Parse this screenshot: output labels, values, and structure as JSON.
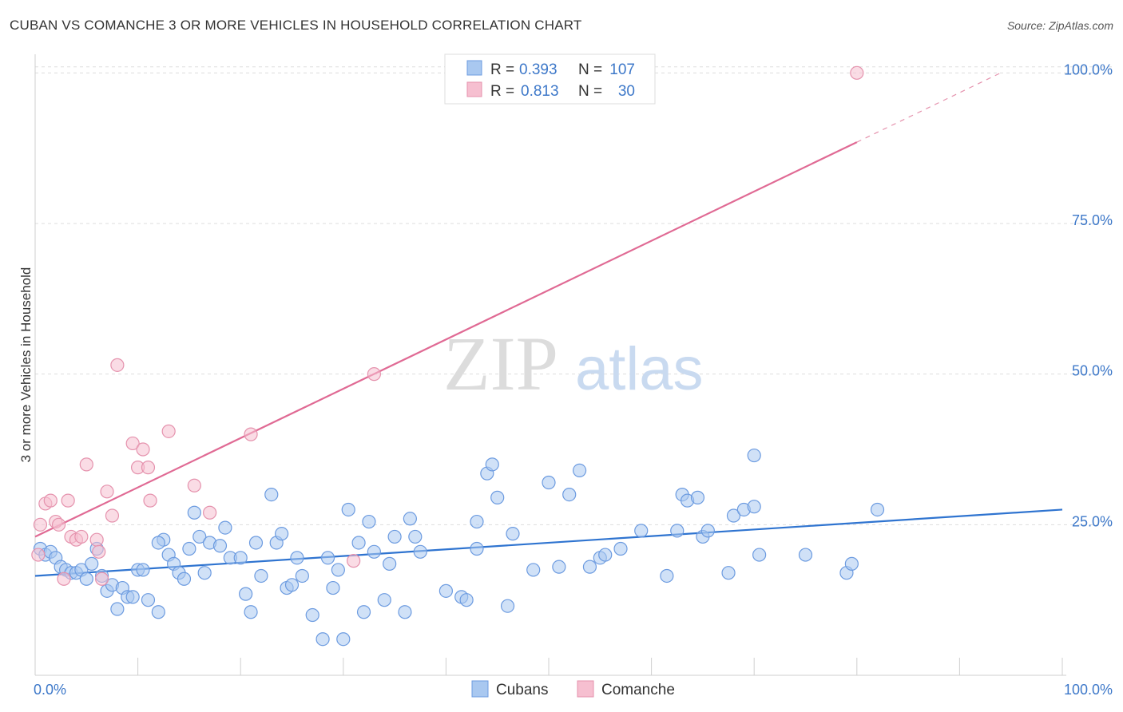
{
  "title": "CUBAN VS COMANCHE 3 OR MORE VEHICLES IN HOUSEHOLD CORRELATION CHART",
  "source": "Source: ZipAtlas.com",
  "watermark": {
    "zip": "ZIP",
    "atlas": "atlas"
  },
  "colors": {
    "cubans_fill": "#a9c8f0",
    "cubans_stroke": "#6c9be0",
    "cubans_line": "#2f74d0",
    "comanche_fill": "#f6bfd0",
    "comanche_stroke": "#e592ad",
    "comanche_line": "#e06a94",
    "axis_label_blue": "#3d78c9",
    "grid": "#dddddd"
  },
  "legend_top": {
    "rows": [
      {
        "r_label": "R =",
        "r_value": "0.393",
        "n_label": "N =",
        "n_value": "107"
      },
      {
        "r_label": "R =",
        "r_value": "0.813",
        "n_label": "N =",
        "n_value": "30"
      }
    ]
  },
  "legend_bottom": [
    "Cubans",
    "Comanche"
  ],
  "chart_data": {
    "type": "scatter",
    "ylabel": "3 or more Vehicles in Household",
    "x_tick_labels": [
      "0.0%",
      "100.0%"
    ],
    "y_tick_labels": [
      "25.0%",
      "50.0%",
      "75.0%",
      "100.0%"
    ],
    "y_ticks": [
      25,
      50,
      75,
      100
    ],
    "xlim": [
      0,
      100
    ],
    "ylim": [
      0,
      102
    ],
    "grid": "horizontal dashed",
    "legend_placement": "top-center",
    "series": [
      {
        "name": "Cubans",
        "trend": {
          "x": [
            0,
            100
          ],
          "y": [
            16.5,
            27.5
          ]
        },
        "points": [
          [
            0.5,
            21
          ],
          [
            1,
            20
          ],
          [
            1.5,
            20.5
          ],
          [
            2,
            19.5
          ],
          [
            2.5,
            18
          ],
          [
            3,
            17.5
          ],
          [
            3.5,
            17
          ],
          [
            4,
            17
          ],
          [
            4.5,
            17.5
          ],
          [
            5,
            16
          ],
          [
            5.5,
            18.5
          ],
          [
            6,
            21
          ],
          [
            6.5,
            16.5
          ],
          [
            7,
            14
          ],
          [
            7.5,
            15
          ],
          [
            8,
            11
          ],
          [
            8.5,
            14.5
          ],
          [
            9,
            13
          ],
          [
            9.5,
            13
          ],
          [
            10,
            17.5
          ],
          [
            10.5,
            17.5
          ],
          [
            11,
            12.5
          ],
          [
            12,
            10.5
          ],
          [
            12.5,
            22.5
          ],
          [
            12,
            22
          ],
          [
            13,
            20
          ],
          [
            13.5,
            18.5
          ],
          [
            14,
            17
          ],
          [
            14.5,
            16
          ],
          [
            15,
            21
          ],
          [
            15.5,
            27
          ],
          [
            16,
            23
          ],
          [
            16.5,
            17
          ],
          [
            17,
            22
          ],
          [
            18,
            21.5
          ],
          [
            18.5,
            24.5
          ],
          [
            19,
            19.5
          ],
          [
            20,
            19.5
          ],
          [
            20.5,
            13.5
          ],
          [
            21,
            10.5
          ],
          [
            21.5,
            22
          ],
          [
            22,
            16.5
          ],
          [
            23,
            30
          ],
          [
            23.5,
            22
          ],
          [
            24,
            23.5
          ],
          [
            24.5,
            14.5
          ],
          [
            25,
            15
          ],
          [
            25.5,
            19.5
          ],
          [
            26,
            16.5
          ],
          [
            27,
            10
          ],
          [
            28,
            6
          ],
          [
            28.5,
            19.5
          ],
          [
            29,
            14.5
          ],
          [
            29.5,
            17.5
          ],
          [
            30,
            6
          ],
          [
            30.5,
            27.5
          ],
          [
            31.5,
            22
          ],
          [
            32,
            10.5
          ],
          [
            32.5,
            25.5
          ],
          [
            33,
            20.5
          ],
          [
            34,
            12.5
          ],
          [
            34.5,
            18.5
          ],
          [
            35,
            23
          ],
          [
            36,
            10.5
          ],
          [
            36.5,
            26
          ],
          [
            37,
            23
          ],
          [
            37.5,
            20.5
          ],
          [
            40,
            14
          ],
          [
            41.5,
            13
          ],
          [
            42,
            12.5
          ],
          [
            43,
            21
          ],
          [
            43,
            25.5
          ],
          [
            44,
            33.5
          ],
          [
            44.5,
            35
          ],
          [
            45,
            29.5
          ],
          [
            46,
            11.5
          ],
          [
            46.5,
            23.5
          ],
          [
            48.5,
            17.5
          ],
          [
            50,
            32
          ],
          [
            51,
            18
          ],
          [
            52,
            30
          ],
          [
            53,
            34
          ],
          [
            54,
            18
          ],
          [
            55,
            19.5
          ],
          [
            55.5,
            20
          ],
          [
            57,
            21
          ],
          [
            59,
            24
          ],
          [
            61.5,
            16.5
          ],
          [
            62.5,
            24
          ],
          [
            63,
            30
          ],
          [
            63.5,
            29
          ],
          [
            64.5,
            29.5
          ],
          [
            65,
            23
          ],
          [
            65.5,
            24
          ],
          [
            67.5,
            17
          ],
          [
            68,
            26.5
          ],
          [
            69,
            27.5
          ],
          [
            70,
            36.5
          ],
          [
            70,
            28
          ],
          [
            70.5,
            20
          ],
          [
            75,
            20
          ],
          [
            79,
            17
          ],
          [
            79.5,
            18.5
          ],
          [
            82,
            27.5
          ]
        ]
      },
      {
        "name": "Comanche",
        "trend": {
          "x": [
            0,
            80
          ],
          "y": [
            23,
            88.5
          ],
          "dashed_to": [
            94,
            100
          ]
        },
        "points": [
          [
            0.3,
            20
          ],
          [
            0.5,
            25
          ],
          [
            1,
            28.5
          ],
          [
            1.5,
            29
          ],
          [
            2,
            25.5
          ],
          [
            2.3,
            25
          ],
          [
            2.8,
            16
          ],
          [
            3.2,
            29
          ],
          [
            3.5,
            23
          ],
          [
            4,
            22.5
          ],
          [
            4.5,
            23
          ],
          [
            5,
            35
          ],
          [
            6,
            22.5
          ],
          [
            6.2,
            20.5
          ],
          [
            6.5,
            16
          ],
          [
            7,
            30.5
          ],
          [
            7.5,
            26.5
          ],
          [
            8,
            51.5
          ],
          [
            9.5,
            38.5
          ],
          [
            10,
            34.5
          ],
          [
            10.5,
            37.5
          ],
          [
            11,
            34.5
          ],
          [
            11.2,
            29
          ],
          [
            13,
            40.5
          ],
          [
            15.5,
            31.5
          ],
          [
            17,
            27
          ],
          [
            21,
            40
          ],
          [
            31,
            19
          ],
          [
            33,
            50
          ],
          [
            80,
            100
          ]
        ]
      }
    ]
  }
}
